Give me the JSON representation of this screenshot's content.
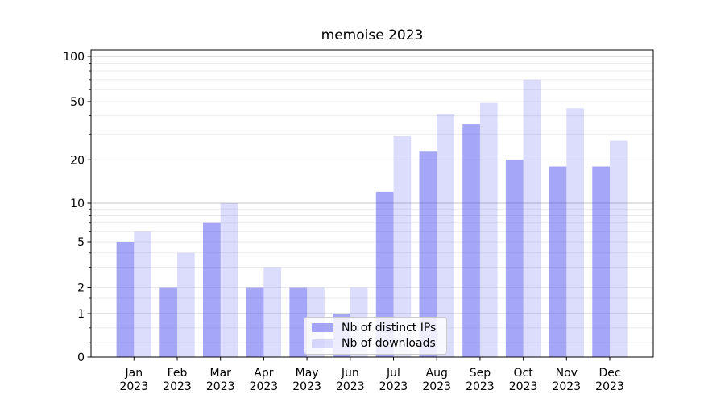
{
  "title": "memoise 2023",
  "chart_data": {
    "type": "bar",
    "title": "memoise 2023",
    "categories": [
      "Jan",
      "Feb",
      "Mar",
      "Apr",
      "May",
      "Jun",
      "Jul",
      "Aug",
      "Sep",
      "Oct",
      "Nov",
      "Dec"
    ],
    "category_year": "2023",
    "series": [
      {
        "name": "Nb of distinct IPs",
        "values": [
          5,
          2,
          7,
          2,
          2,
          1,
          12,
          23,
          35,
          20,
          18,
          18
        ],
        "color": "#4444ee",
        "alpha": 0.48
      },
      {
        "name": "Nb of downloads",
        "values": [
          6,
          4,
          10,
          3,
          2,
          2,
          29,
          41,
          49,
          70,
          45,
          27
        ],
        "color": "#4444ee",
        "alpha": 0.19
      }
    ],
    "xlabel": "",
    "ylabel": "",
    "yscale": "symlog",
    "ylim": [
      0,
      115
    ],
    "y_ticks": [
      0,
      1,
      2,
      5,
      10,
      20,
      50,
      100
    ],
    "y_major_gridlines": [
      1,
      10,
      100
    ],
    "y_minor_gridlines": [
      0.33,
      0.67,
      1.5,
      2,
      3,
      4,
      5,
      6,
      7,
      8,
      9,
      20,
      30,
      40,
      50,
      60,
      70,
      80,
      90
    ],
    "grid": true,
    "legend_position": "lower center"
  },
  "legend": {
    "items": [
      {
        "label": "Nb of distinct IPs"
      },
      {
        "label": "Nb of downloads"
      }
    ]
  },
  "colors": {
    "bar_base": "#4444ee",
    "bar_dark_on_white": "#a5a5f6",
    "bar_light_on_white": "#dbdbfb",
    "grid_major": "#c6c6c6",
    "grid_minor": "#ebebeb",
    "axis": "#000000",
    "text": "#000000"
  }
}
